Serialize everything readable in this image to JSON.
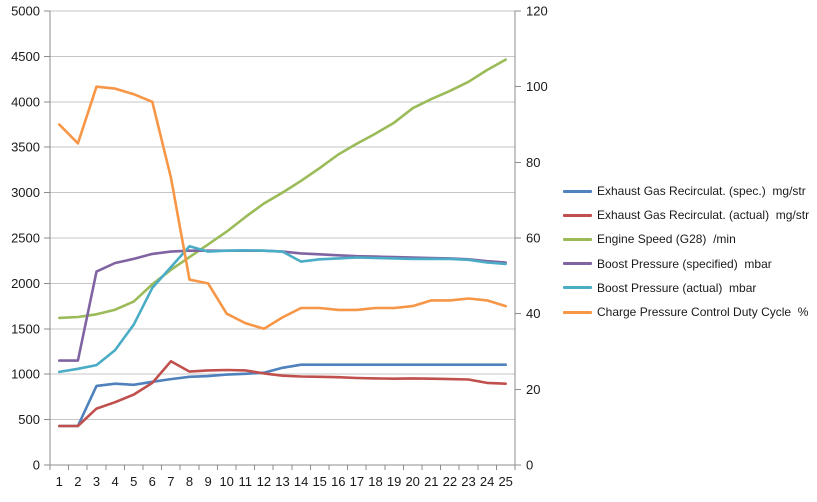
{
  "chart_data": {
    "type": "line",
    "title": "",
    "xlabel": "",
    "ylabel_left": "",
    "ylabel_right": "",
    "grid": true,
    "legend_position": "right",
    "background_color": "#FFFFFF",
    "grid_color": "#C6C6C6",
    "axis_color": "#8C8C8C",
    "label_color": "#1A1A1A",
    "categories": [
      1,
      2,
      3,
      4,
      5,
      6,
      7,
      8,
      9,
      10,
      11,
      12,
      13,
      14,
      15,
      16,
      17,
      18,
      19,
      20,
      21,
      22,
      23,
      24,
      25
    ],
    "left_axis": {
      "min": 0,
      "max": 5000,
      "step": 500
    },
    "right_axis": {
      "min": 0,
      "max": 120,
      "step": 20
    },
    "series": [
      {
        "name": "Exhaust Gas Recirculat. (spec.)  mg/str",
        "axis": "right",
        "color": "#4F81BD",
        "values": [
          10.3,
          10.3,
          20.9,
          21.5,
          21.2,
          22.0,
          22.7,
          23.3,
          23.5,
          23.9,
          24.1,
          24.4,
          25.7,
          26.5,
          26.5,
          26.5,
          26.5,
          26.5,
          26.5,
          26.5,
          26.5,
          26.5,
          26.5,
          26.5,
          26.5
        ]
      },
      {
        "name": "Exhaust Gas Recirculat. (actual)  mg/str",
        "axis": "right",
        "color": "#C0504D",
        "values": [
          10.3,
          10.3,
          14.9,
          16.6,
          18.6,
          21.7,
          27.4,
          24.7,
          25.0,
          25.1,
          25.0,
          24.2,
          23.6,
          23.4,
          23.3,
          23.2,
          23.0,
          22.9,
          22.8,
          22.9,
          22.8,
          22.7,
          22.6,
          21.7,
          21.5
        ]
      },
      {
        "name": "Engine Speed (G28)  /min",
        "axis": "left",
        "color": "#9BBB59",
        "values": [
          1620,
          1630,
          1660,
          1710,
          1800,
          1990,
          2150,
          2290,
          2430,
          2570,
          2730,
          2880,
          3000,
          3130,
          3270,
          3420,
          3540,
          3650,
          3770,
          3930,
          4030,
          4120,
          4220,
          4350,
          4465
        ]
      },
      {
        "name": "Boost Pressure (specified)  mbar",
        "axis": "left",
        "color": "#8064A2",
        "values": [
          1150,
          1150,
          2130,
          2225,
          2270,
          2325,
          2350,
          2360,
          2360,
          2360,
          2360,
          2360,
          2350,
          2330,
          2320,
          2310,
          2300,
          2295,
          2290,
          2285,
          2280,
          2275,
          2265,
          2245,
          2230
        ]
      },
      {
        "name": "Boost Pressure (actual)  mbar",
        "axis": "left",
        "color": "#4BACC6",
        "values": [
          1025,
          1060,
          1100,
          1265,
          1545,
          1950,
          2180,
          2410,
          2350,
          2360,
          2365,
          2360,
          2350,
          2240,
          2265,
          2275,
          2285,
          2280,
          2275,
          2270,
          2270,
          2270,
          2260,
          2230,
          2215
        ]
      },
      {
        "name": "Charge Pressure Control Duty Cycle  %",
        "axis": "right",
        "color": "#F79646",
        "values": [
          90,
          85,
          100,
          99.5,
          98,
          96,
          76,
          49,
          48,
          40,
          37.5,
          36,
          39,
          41.5,
          41.5,
          41,
          41,
          41.5,
          41.5,
          42,
          43.5,
          43.5,
          44,
          43.5,
          42
        ]
      }
    ]
  }
}
